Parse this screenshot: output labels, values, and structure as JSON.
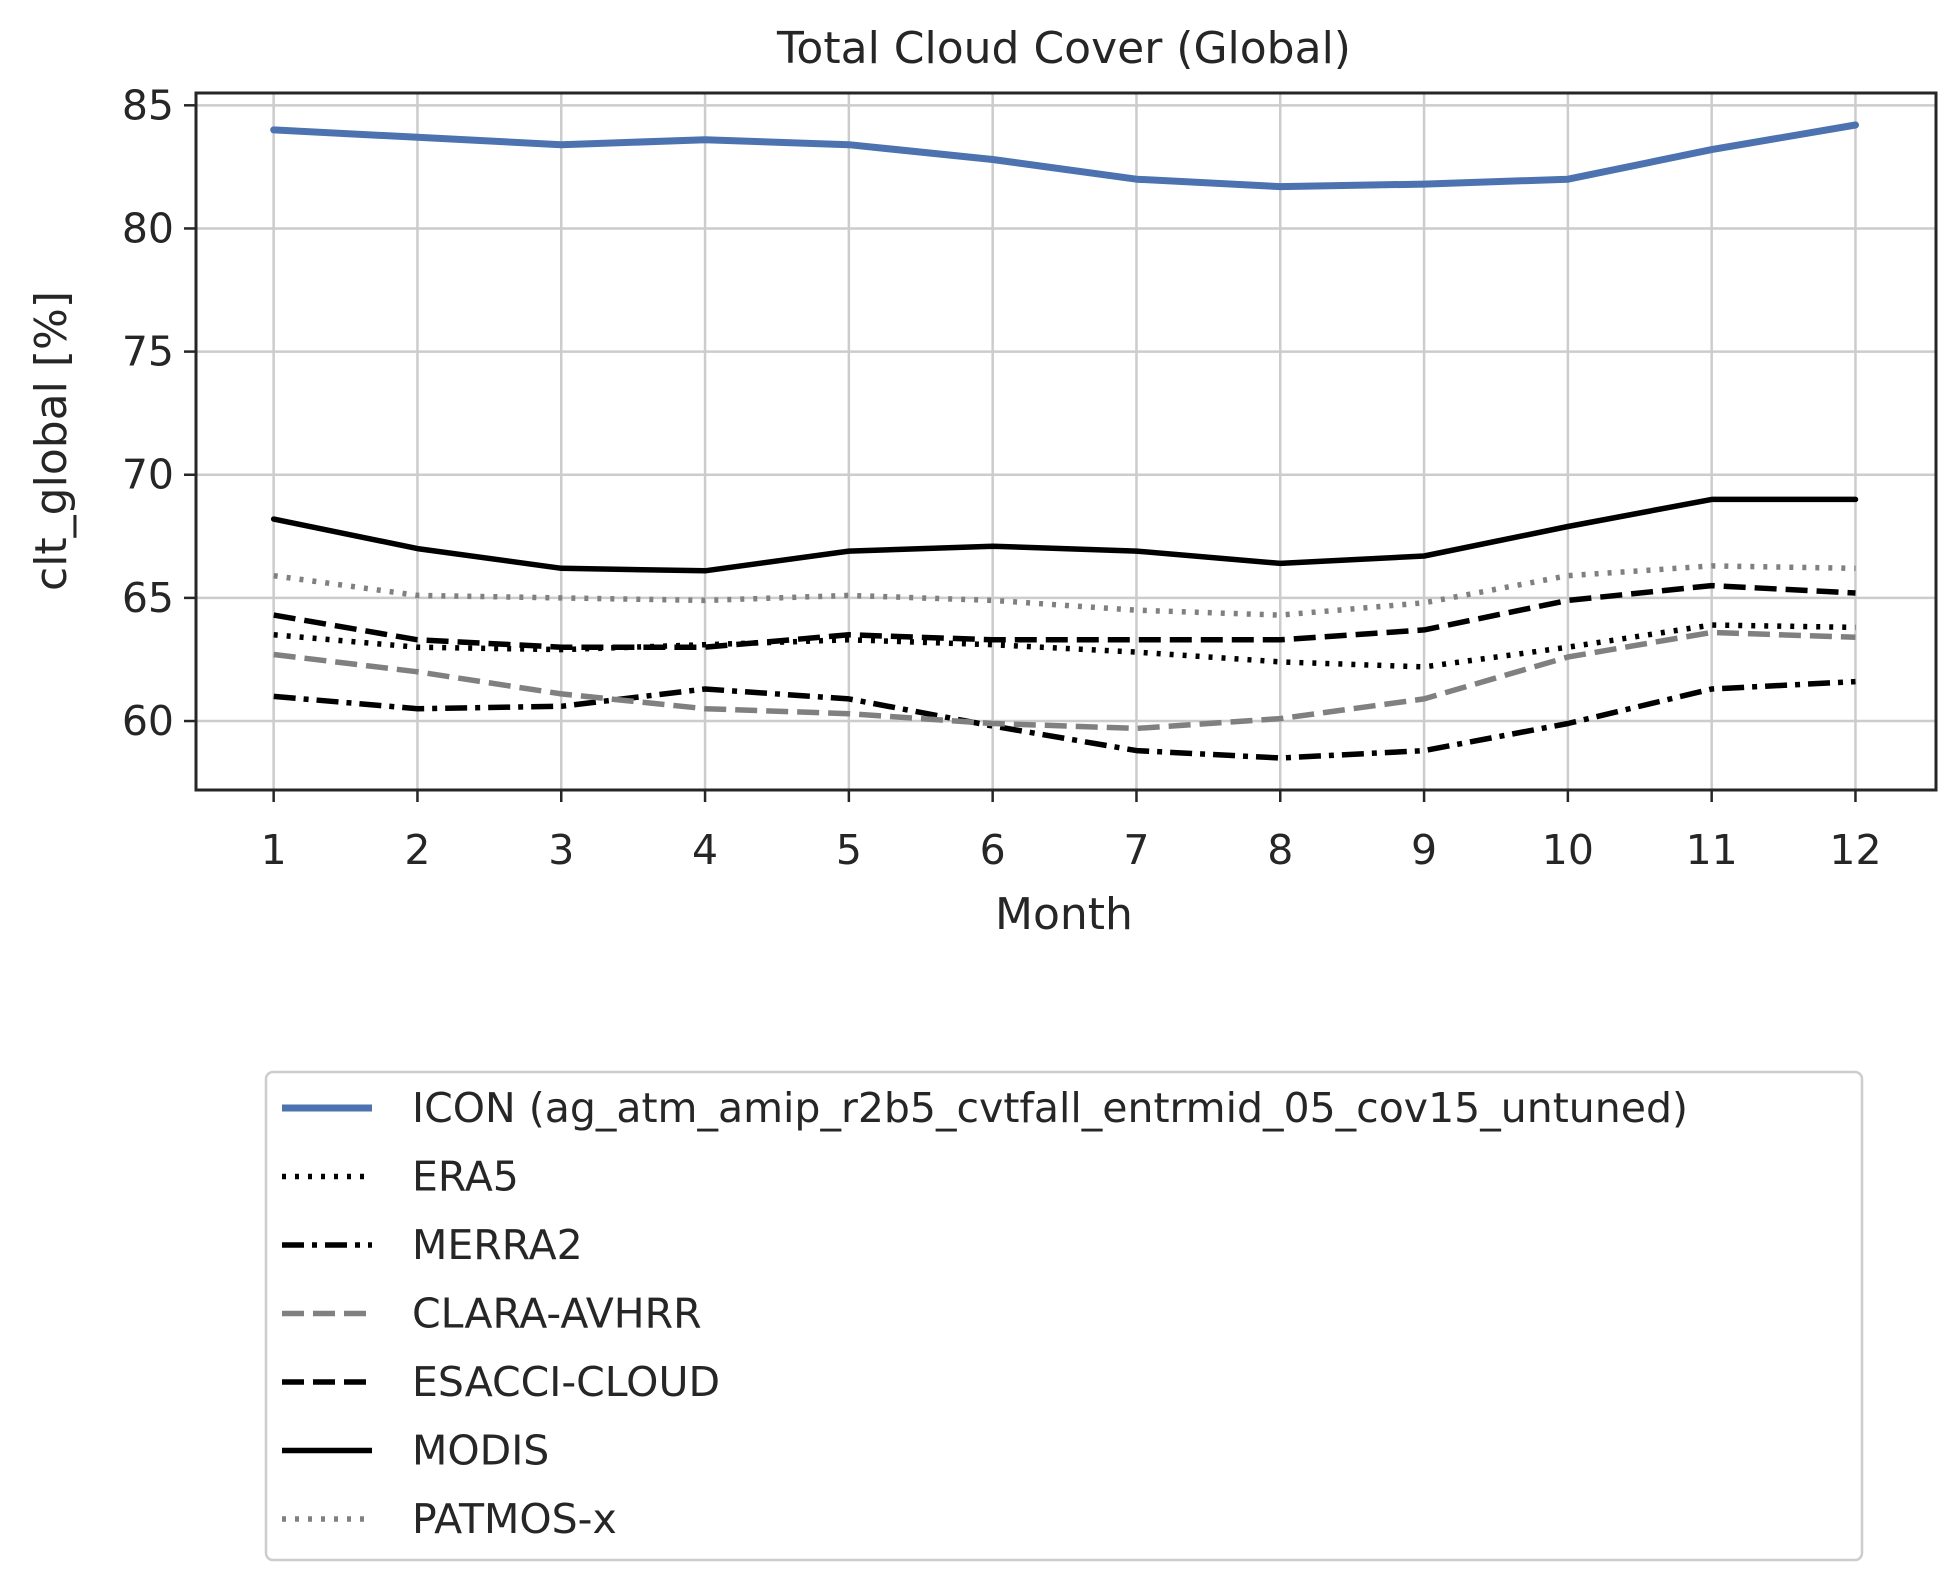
{
  "chart_data": {
    "type": "line",
    "title": "Total Cloud Cover (Global)",
    "xlabel": "Month",
    "ylabel": "clt_global [%]",
    "x": [
      1,
      2,
      3,
      4,
      5,
      6,
      7,
      8,
      9,
      10,
      11,
      12
    ],
    "xticks": [
      "1",
      "2",
      "3",
      "4",
      "5",
      "6",
      "7",
      "8",
      "9",
      "10",
      "11",
      "12"
    ],
    "yticks": [
      "60",
      "65",
      "70",
      "75",
      "80",
      "85"
    ],
    "xlim": [
      0.46,
      12.56
    ],
    "ylim": [
      57.2,
      85.5
    ],
    "grid": true,
    "legend_position": "below plot",
    "series": [
      {
        "name": "ICON (ag_atm_amip_r2b5_cvtfall_entrmid_05_cov15_untuned)",
        "color": "#4c72b0",
        "style": "solid",
        "values": [
          84.0,
          83.7,
          83.4,
          83.6,
          83.4,
          82.8,
          82.0,
          81.7,
          81.8,
          82.0,
          83.2,
          84.2
        ]
      },
      {
        "name": "ERA5",
        "color": "#000000",
        "style": "dotted",
        "values": [
          63.5,
          63.0,
          62.9,
          63.1,
          63.3,
          63.1,
          62.8,
          62.4,
          62.2,
          63.0,
          63.9,
          63.8
        ]
      },
      {
        "name": "MERRA2",
        "color": "#000000",
        "style": "dashdot",
        "values": [
          61.0,
          60.5,
          60.6,
          61.3,
          60.9,
          59.8,
          58.8,
          58.5,
          58.8,
          59.9,
          61.3,
          61.6
        ]
      },
      {
        "name": "CLARA-AVHRR",
        "color": "#808080",
        "style": "dashed",
        "values": [
          62.7,
          62.0,
          61.1,
          60.5,
          60.3,
          59.9,
          59.7,
          60.1,
          60.9,
          62.6,
          63.6,
          63.4
        ]
      },
      {
        "name": "ESACCI-CLOUD",
        "color": "#000000",
        "style": "dashed",
        "values": [
          64.3,
          63.3,
          63.0,
          63.0,
          63.5,
          63.3,
          63.3,
          63.3,
          63.7,
          64.9,
          65.5,
          65.2
        ]
      },
      {
        "name": "MODIS",
        "color": "#000000",
        "style": "solid",
        "values": [
          68.2,
          67.0,
          66.2,
          66.1,
          66.9,
          67.1,
          66.9,
          66.4,
          66.7,
          67.9,
          69.0,
          69.0
        ]
      },
      {
        "name": "PATMOS-x",
        "color": "#808080",
        "style": "dotted",
        "values": [
          65.9,
          65.1,
          65.0,
          64.9,
          65.1,
          64.9,
          64.5,
          64.3,
          64.8,
          65.9,
          66.3,
          66.2
        ]
      }
    ]
  }
}
